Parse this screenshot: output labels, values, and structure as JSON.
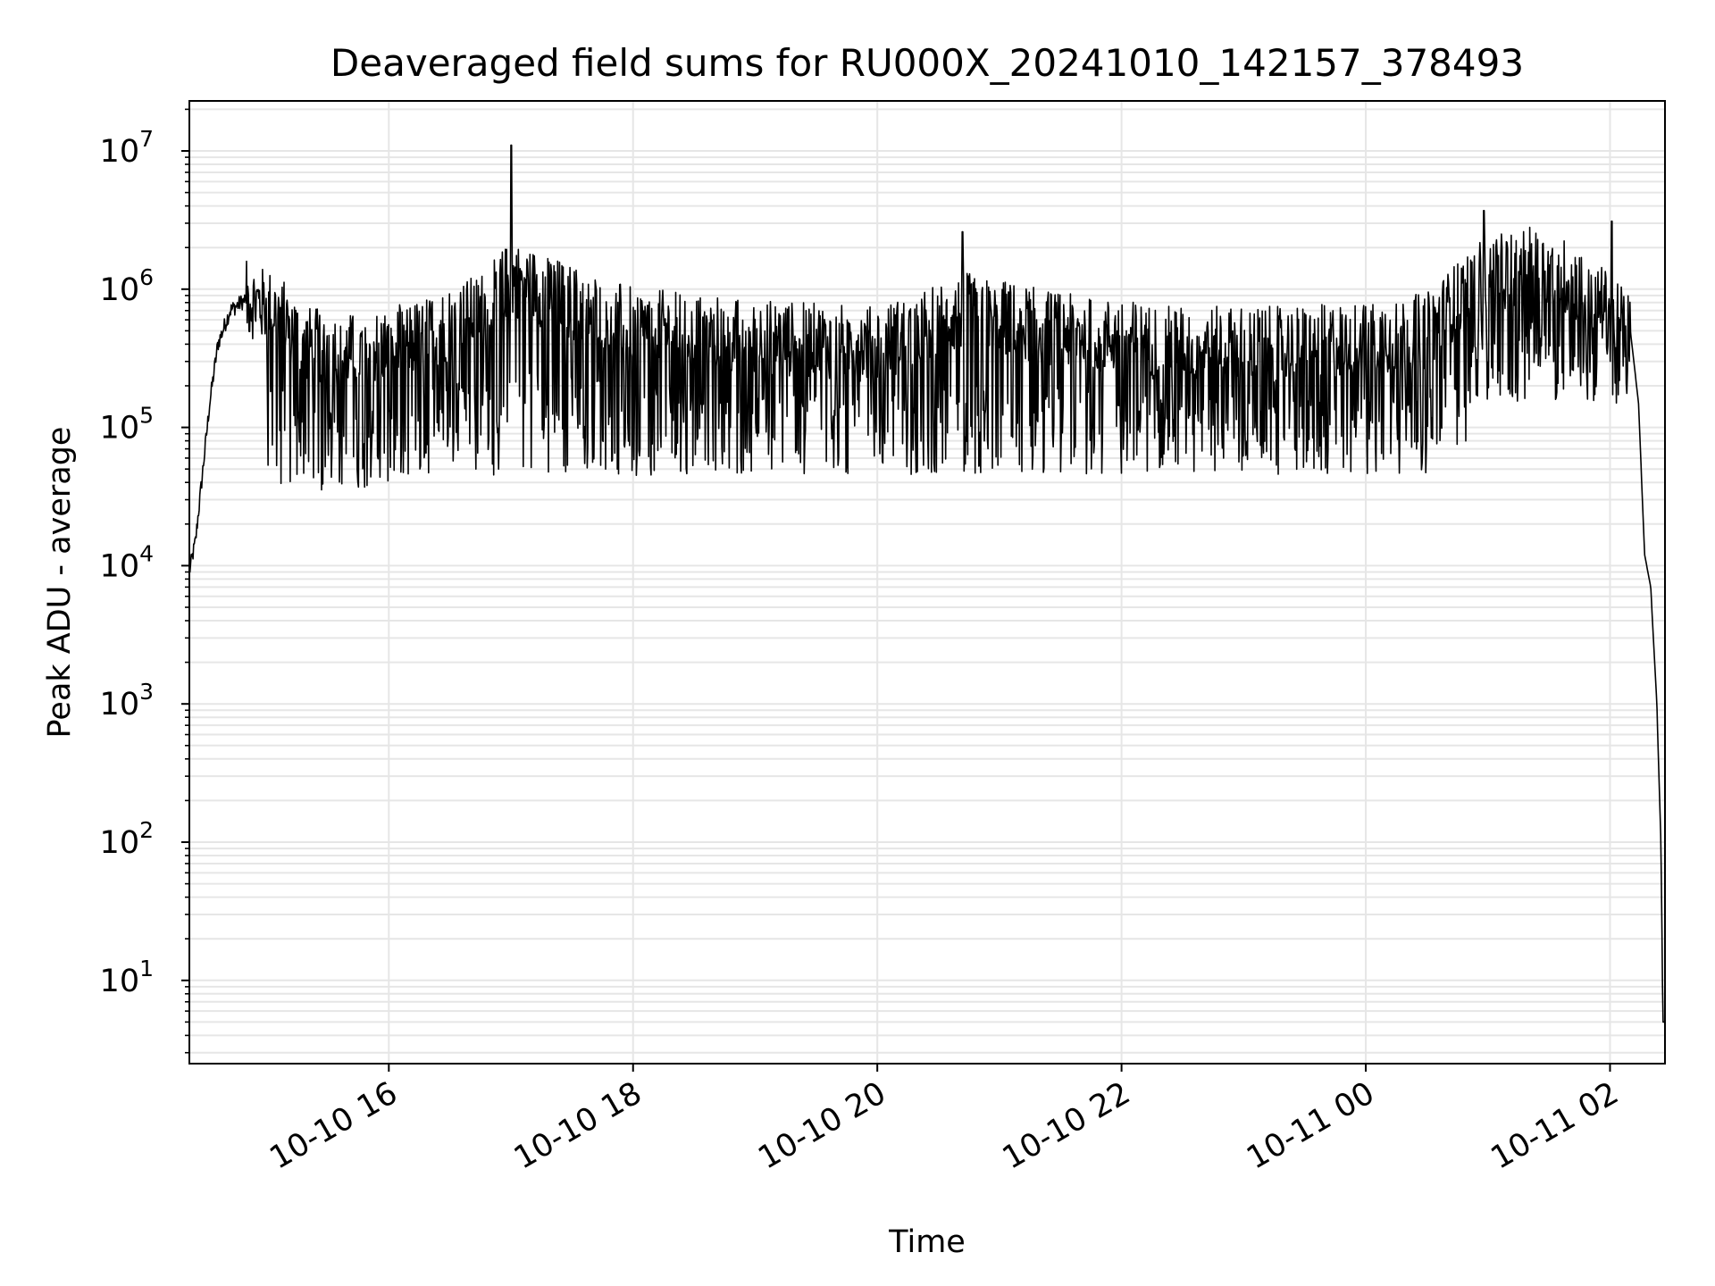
{
  "chart_data": {
    "type": "line",
    "title": "Deaveraged field sums for RU000X_20241010_142157_378493",
    "xlabel": "Time",
    "ylabel": "Peak ADU - average",
    "yscale": "log",
    "grid": true,
    "grid_minor_y": true,
    "xlim": [
      "2024-10-10 14:22",
      "2024-10-11 02:27"
    ],
    "ylim": [
      2.5,
      23000000
    ],
    "x_ticks": [
      {
        "value": "2024-10-10 16:00",
        "label": "10-10 16"
      },
      {
        "value": "2024-10-10 18:00",
        "label": "10-10 18"
      },
      {
        "value": "2024-10-10 20:00",
        "label": "10-10 20"
      },
      {
        "value": "2024-10-10 22:00",
        "label": "10-10 22"
      },
      {
        "value": "2024-10-11 00:00",
        "label": "10-11 00"
      },
      {
        "value": "2024-10-11 02:00",
        "label": "10-11 02"
      }
    ],
    "y_ticks": [
      {
        "value": 10,
        "base": "10",
        "exp": "1"
      },
      {
        "value": 100,
        "base": "10",
        "exp": "2"
      },
      {
        "value": 1000,
        "base": "10",
        "exp": "3"
      },
      {
        "value": 10000,
        "base": "10",
        "exp": "4"
      },
      {
        "value": 100000,
        "base": "10",
        "exp": "5"
      },
      {
        "value": 1000000,
        "base": "10",
        "exp": "6"
      },
      {
        "value": 10000000,
        "base": "10",
        "exp": "7"
      }
    ],
    "series": [
      {
        "color": "#000000",
        "points": [
          [
            "2024-10-10 14:22",
            9000
          ],
          [
            "2024-10-10 14:25",
            15000
          ],
          [
            "2024-10-10 14:28",
            40000
          ],
          [
            "2024-10-10 14:32",
            150000
          ],
          [
            "2024-10-10 14:36",
            400000
          ],
          [
            "2024-10-10 14:42",
            700000
          ],
          [
            "2024-10-10 14:50",
            850000
          ],
          [
            "2024-10-10 15:05",
            700000
          ],
          [
            "2024-10-10 15:20",
            400000
          ],
          [
            "2024-10-10 15:45",
            350000
          ],
          [
            "2024-10-10 16:15",
            450000
          ],
          [
            "2024-10-10 16:45",
            700000
          ],
          [
            "2024-10-10 17:00",
            1200000
          ],
          [
            "2024-10-10 17:15",
            1000000
          ],
          [
            "2024-10-10 17:30",
            800000
          ],
          [
            "2024-10-10 18:00",
            550000
          ],
          [
            "2024-10-10 19:00",
            450000
          ],
          [
            "2024-10-10 20:00",
            400000
          ],
          [
            "2024-10-10 20:45",
            700000
          ],
          [
            "2024-10-10 21:30",
            500000
          ],
          [
            "2024-10-10 22:30",
            400000
          ],
          [
            "2024-10-10 23:30",
            400000
          ],
          [
            "2024-10-11 00:30",
            500000
          ],
          [
            "2024-10-11 00:55",
            1200000
          ],
          [
            "2024-10-11 01:20",
            1500000
          ],
          [
            "2024-10-11 01:40",
            1200000
          ],
          [
            "2024-10-11 02:00",
            700000
          ],
          [
            "2024-10-11 02:10",
            500000
          ],
          [
            "2024-10-11 02:14",
            150000
          ],
          [
            "2024-10-11 02:17",
            12000
          ],
          [
            "2024-10-11 02:20",
            7000
          ],
          [
            "2024-10-11 02:23",
            1000
          ],
          [
            "2024-10-11 02:25",
            100
          ],
          [
            "2024-10-11 02:26",
            5
          ],
          [
            "2024-10-11 02:27",
            5
          ]
        ],
        "noise": {
          "description": "dense high-frequency fluctuation around the points above",
          "typical_lows": [
            {
              "from": "2024-10-10 15:00",
              "to": "2024-10-10 16:00",
              "min": 35000
            },
            {
              "from": "2024-10-10 16:00",
              "to": "2024-10-11 00:50",
              "min": 45000
            },
            {
              "from": "2024-10-11 00:50",
              "to": "2024-10-11 02:10",
              "min": 150000
            }
          ],
          "spikes": [
            {
              "x": "2024-10-10 17:00",
              "y": 11000000
            },
            {
              "x": "2024-10-11 00:58",
              "y": 3700000
            },
            {
              "x": "2024-10-11 02:01",
              "y": 3100000
            },
            {
              "x": "2024-10-10 20:42",
              "y": 2600000
            }
          ]
        }
      }
    ]
  }
}
